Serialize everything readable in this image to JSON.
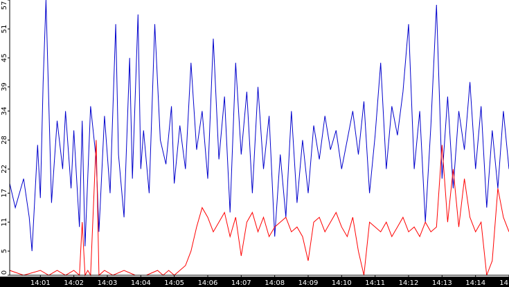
{
  "chart_data": {
    "type": "line",
    "title": "",
    "xlabel": "",
    "ylabel": "",
    "y_ticks": [
      "0",
      "5",
      "11",
      "17",
      "22",
      "28",
      "34",
      "39",
      "45",
      "51",
      "57"
    ],
    "ylim": [
      0,
      57
    ],
    "x_ticks": [
      "14:01",
      "14:02",
      "14:03",
      "14:04",
      "14:05",
      "14:06",
      "14:07",
      "14:08",
      "14:09",
      "14:10",
      "14:11",
      "14:12",
      "14:13",
      "14:14",
      "14"
    ],
    "x_range": [
      "14:00:05",
      "14:15:00"
    ],
    "grid": false,
    "legend": "none",
    "series": [
      {
        "color": "#0000cc",
        "x": [
          "14:00:05",
          "14:00:15",
          "14:00:30",
          "14:00:40",
          "14:00:45",
          "14:00:55",
          "14:01:00",
          "14:01:05",
          "14:01:10",
          "14:01:20",
          "14:01:30",
          "14:01:40",
          "14:01:45",
          "14:01:55",
          "14:02:00",
          "14:02:10",
          "14:02:15",
          "14:02:20",
          "14:02:30",
          "14:02:40",
          "14:02:45",
          "14:02:55",
          "14:03:05",
          "14:03:15",
          "14:03:20",
          "14:03:30",
          "14:03:40",
          "14:03:45",
          "14:03:55",
          "14:04:00",
          "14:04:05",
          "14:04:15",
          "14:04:25",
          "14:04:35",
          "14:04:45",
          "14:04:55",
          "14:05:00",
          "14:05:10",
          "14:05:20",
          "14:05:30",
          "14:05:40",
          "14:05:50",
          "14:06:00",
          "14:06:10",
          "14:06:20",
          "14:06:30",
          "14:06:40",
          "14:06:50",
          "14:07:00",
          "14:07:10",
          "14:07:20",
          "14:07:30",
          "14:07:40",
          "14:07:50",
          "14:08:00",
          "14:08:10",
          "14:08:20",
          "14:08:30",
          "14:08:40",
          "14:08:50",
          "14:09:00",
          "14:09:10",
          "14:09:20",
          "14:09:30",
          "14:09:40",
          "14:09:50",
          "14:10:00",
          "14:10:10",
          "14:10:20",
          "14:10:30",
          "14:10:40",
          "14:10:50",
          "14:11:00",
          "14:11:10",
          "14:11:20",
          "14:11:30",
          "14:11:40",
          "14:11:50",
          "14:12:00",
          "14:12:10",
          "14:12:20",
          "14:12:30",
          "14:12:40",
          "14:12:50",
          "14:13:00",
          "14:13:10",
          "14:13:20",
          "14:13:30",
          "14:13:40",
          "14:13:50",
          "14:14:00",
          "14:14:10",
          "14:14:20",
          "14:14:30",
          "14:14:40",
          "14:14:50",
          "14:15:00"
        ],
        "values": [
          19,
          14,
          20,
          12,
          5,
          27,
          16,
          40,
          57,
          15,
          32,
          22,
          34,
          18,
          30,
          10,
          32,
          6,
          35,
          24,
          9,
          33,
          17,
          52,
          25,
          12,
          45,
          20,
          54,
          22,
          30,
          17,
          52,
          28,
          23,
          35,
          19,
          31,
          22,
          44,
          26,
          34,
          20,
          49,
          24,
          37,
          13,
          44,
          25,
          38,
          17,
          39,
          22,
          33,
          8,
          25,
          12,
          34,
          15,
          28,
          17,
          31,
          24,
          33,
          26,
          30,
          22,
          28,
          34,
          25,
          36,
          17,
          29,
          44,
          22,
          35,
          29,
          38,
          52,
          22,
          34,
          11,
          31,
          56,
          20,
          37,
          18,
          34,
          26,
          40,
          22,
          35,
          14,
          30,
          18,
          34,
          22
        ]
      },
      {
        "color": "#ff0000",
        "x": [
          "14:00:05",
          "14:00:30",
          "14:01:00",
          "14:01:15",
          "14:01:30",
          "14:01:45",
          "14:02:00",
          "14:02:10",
          "14:02:15",
          "14:02:20",
          "14:02:25",
          "14:02:30",
          "14:02:40",
          "14:02:45",
          "14:02:55",
          "14:03:10",
          "14:03:30",
          "14:03:50",
          "14:04:10",
          "14:04:30",
          "14:04:40",
          "14:04:50",
          "14:05:00",
          "14:05:10",
          "14:05:20",
          "14:05:30",
          "14:05:40",
          "14:05:50",
          "14:06:00",
          "14:06:10",
          "14:06:20",
          "14:06:30",
          "14:06:40",
          "14:06:50",
          "14:07:00",
          "14:07:10",
          "14:07:20",
          "14:07:30",
          "14:07:40",
          "14:07:50",
          "14:08:00",
          "14:08:10",
          "14:08:20",
          "14:08:30",
          "14:08:40",
          "14:08:50",
          "14:09:00",
          "14:09:10",
          "14:09:20",
          "14:09:30",
          "14:09:40",
          "14:09:50",
          "14:10:00",
          "14:10:10",
          "14:10:20",
          "14:10:30",
          "14:10:40",
          "14:10:50",
          "14:11:00",
          "14:11:10",
          "14:11:20",
          "14:11:30",
          "14:11:40",
          "14:11:50",
          "14:12:00",
          "14:12:10",
          "14:12:20",
          "14:12:30",
          "14:12:40",
          "14:12:50",
          "14:13:00",
          "14:13:10",
          "14:13:20",
          "14:13:30",
          "14:13:40",
          "14:13:50",
          "14:14:00",
          "14:14:10",
          "14:14:20",
          "14:14:30",
          "14:14:40",
          "14:14:50",
          "14:15:00"
        ],
        "values": [
          1,
          0,
          1,
          0,
          1,
          0,
          1,
          0,
          11,
          0,
          1,
          0,
          28,
          0,
          1,
          0,
          1,
          0,
          0,
          1,
          0,
          1,
          0,
          1,
          2,
          5,
          10,
          14,
          12,
          9,
          11,
          13,
          8,
          12,
          4,
          11,
          13,
          9,
          12,
          8,
          10,
          11,
          12,
          9,
          10,
          8,
          3,
          11,
          12,
          9,
          11,
          13,
          10,
          8,
          12,
          5,
          0,
          11,
          10,
          9,
          11,
          8,
          10,
          12,
          9,
          10,
          8,
          11,
          9,
          10,
          27,
          11,
          22,
          10,
          20,
          12,
          9,
          11,
          0,
          3,
          18,
          12,
          9
        ]
      }
    ]
  }
}
